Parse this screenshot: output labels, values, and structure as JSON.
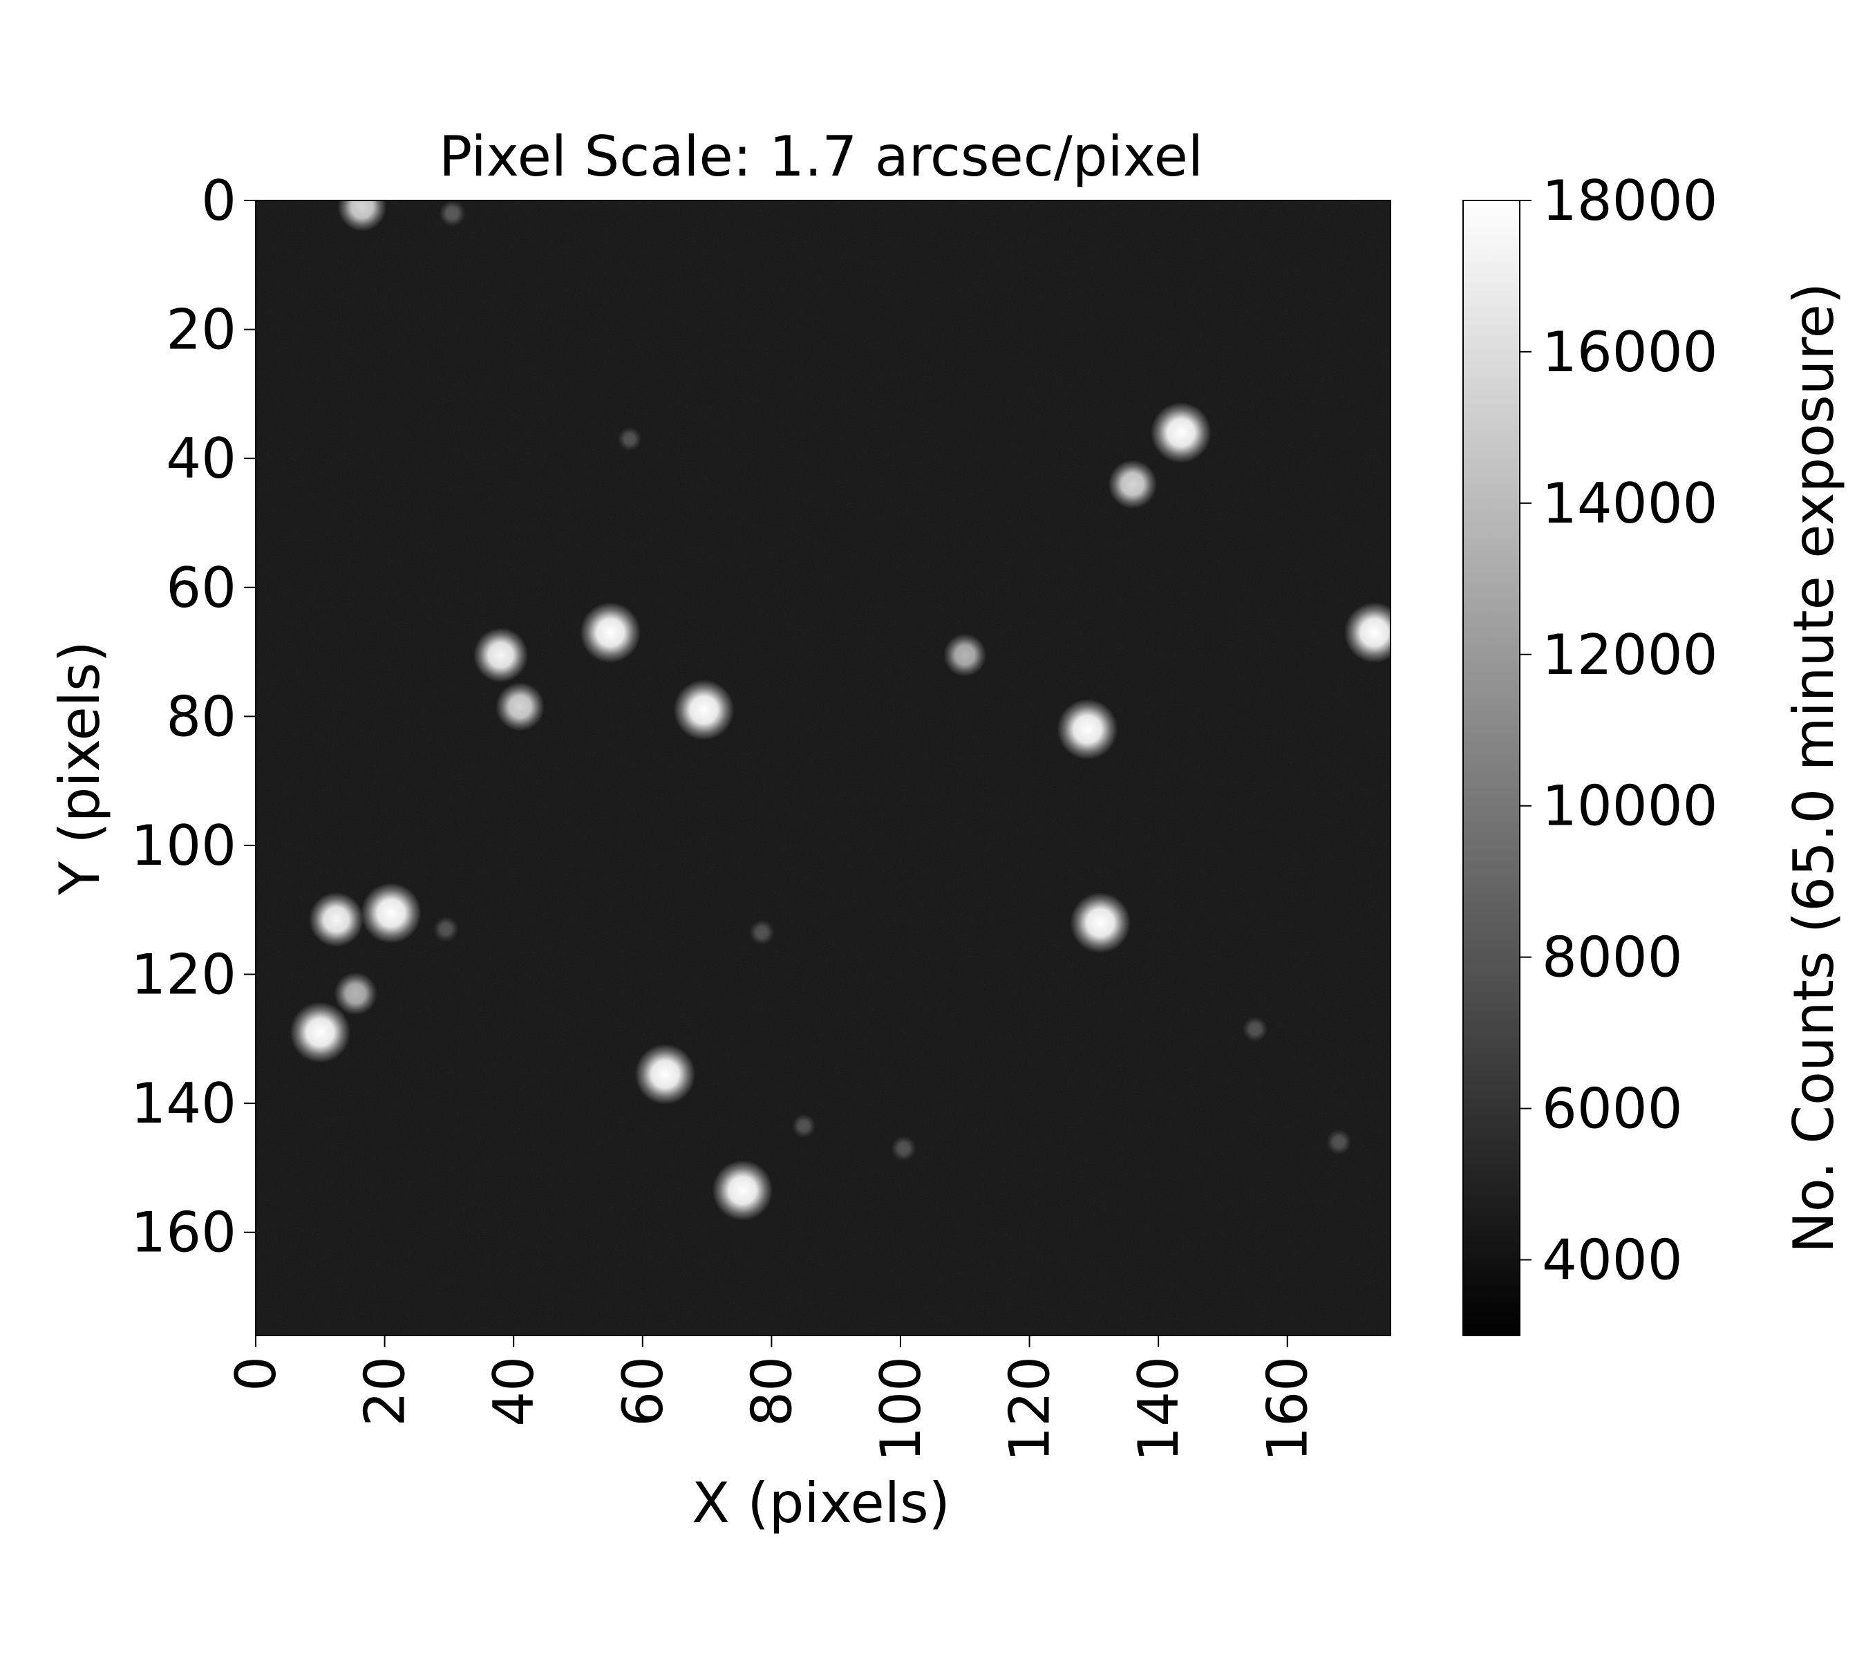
{
  "chart_data": {
    "type": "heatmap",
    "title": "Pixel Scale: 1.7 arcsec/pixel",
    "xlabel": "X (pixels)",
    "ylabel": "Y (pixels)",
    "xlim": [
      0,
      176
    ],
    "ylim": [
      176,
      0
    ],
    "x_ticks": [
      "0",
      "20",
      "40",
      "60",
      "80",
      "100",
      "120",
      "140",
      "160"
    ],
    "y_ticks": [
      "0",
      "20",
      "40",
      "60",
      "80",
      "100",
      "120",
      "140",
      "160"
    ],
    "colormap": "gray",
    "colorbar": {
      "label": "No. Counts (65.0 minute exposure)",
      "range": [
        3000,
        18000
      ],
      "ticks": [
        "4000",
        "6000",
        "8000",
        "10000",
        "12000",
        "14000",
        "16000",
        "18000"
      ]
    },
    "background_level": 4000,
    "sources": [
      {
        "x": 16.5,
        "y": 1,
        "peak": 14000
      },
      {
        "x": 30.5,
        "y": 2,
        "peak": 6500
      },
      {
        "x": 143.5,
        "y": 36,
        "peak": 18000
      },
      {
        "x": 136,
        "y": 44,
        "peak": 14000
      },
      {
        "x": 55,
        "y": 67,
        "peak": 18000
      },
      {
        "x": 38,
        "y": 70.5,
        "peak": 16000
      },
      {
        "x": 110,
        "y": 70.5,
        "peak": 12000
      },
      {
        "x": 173.5,
        "y": 67,
        "peak": 18000
      },
      {
        "x": 41,
        "y": 78.5,
        "peak": 14000
      },
      {
        "x": 69.5,
        "y": 79,
        "peak": 18000
      },
      {
        "x": 129,
        "y": 82,
        "peak": 18000
      },
      {
        "x": 12.5,
        "y": 111.5,
        "peak": 16000
      },
      {
        "x": 21,
        "y": 110.5,
        "peak": 18000
      },
      {
        "x": 131,
        "y": 112,
        "peak": 18000
      },
      {
        "x": 78.5,
        "y": 113.5,
        "peak": 6000
      },
      {
        "x": 15.5,
        "y": 123,
        "peak": 12000
      },
      {
        "x": 10,
        "y": 129,
        "peak": 18000
      },
      {
        "x": 63.5,
        "y": 135.5,
        "peak": 18000
      },
      {
        "x": 155,
        "y": 128.5,
        "peak": 6000
      },
      {
        "x": 75.5,
        "y": 153.5,
        "peak": 18000
      },
      {
        "x": 100.5,
        "y": 147,
        "peak": 6000
      },
      {
        "x": 168,
        "y": 146,
        "peak": 6000
      },
      {
        "x": 29.5,
        "y": 113,
        "peak": 6000
      },
      {
        "x": 58,
        "y": 37,
        "peak": 5500
      },
      {
        "x": 85,
        "y": 143.5,
        "peak": 5500
      }
    ]
  }
}
